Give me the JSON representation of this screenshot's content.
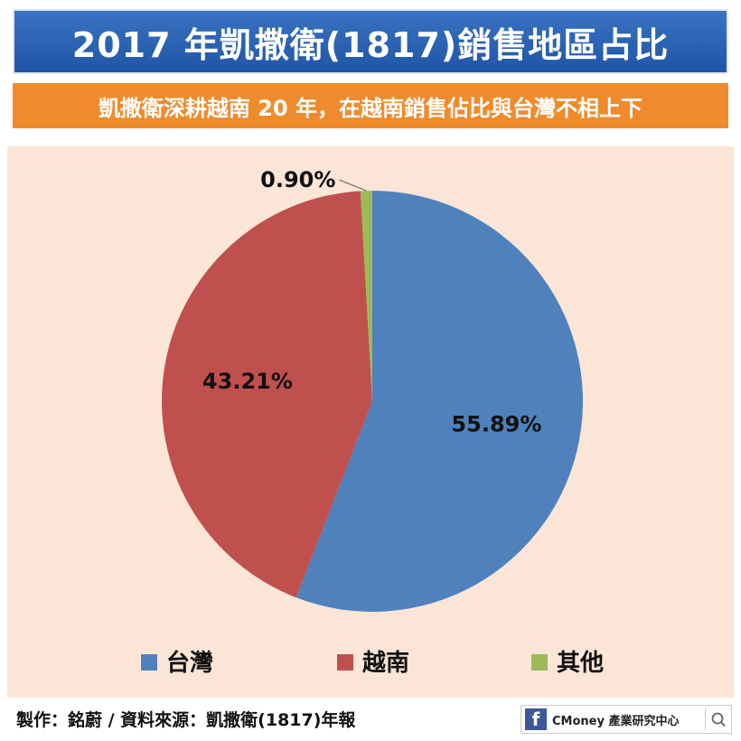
{
  "header": {
    "title": "2017 年凱撒衛(1817)銷售地區占比",
    "subtitle": "凱撒衛深耕越南 20 年，在越南銷售佔比與台灣不相上下"
  },
  "chart_data": {
    "type": "pie",
    "slices": [
      {
        "label": "台灣",
        "value": 55.89,
        "display": "55.89%",
        "color": "#4f81bd"
      },
      {
        "label": "越南",
        "value": 43.21,
        "display": "43.21%",
        "color": "#c0504d"
      },
      {
        "label": "其他",
        "value": 0.9,
        "display": "0.90%",
        "color": "#9bbb59"
      }
    ],
    "start": "12 o'clock",
    "direction": "clockwise",
    "legend_position": "bottom"
  },
  "footer": {
    "credit": "製作：銘蔚 / 資料來源：凱撒衛(1817)年報",
    "brand": "CMoney 產業研究中心",
    "brand_icon": "facebook-icon",
    "search_icon": "search-icon"
  }
}
